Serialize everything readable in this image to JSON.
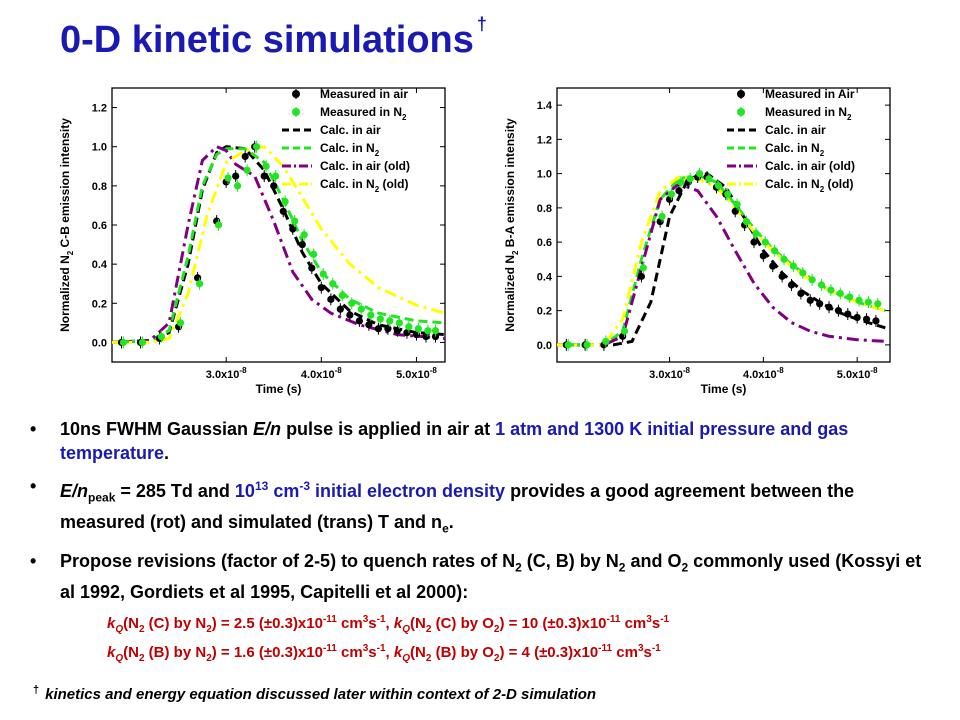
{
  "slide": {
    "title": "0-D kinetic simulations",
    "title_mark": "†",
    "colors": {
      "title": "#1a1ab3",
      "highlight": "#1a1ab3",
      "formula": "#c00000"
    }
  },
  "bullets": {
    "b1": {
      "text_a": "10ns FWHM Gaussian ",
      "text_b": "E/n",
      "text_c": " pulse is applied in air at ",
      "highlight": "1 atm and 1300 K initial pressure and gas temperature",
      "text_d": "."
    },
    "b2": {
      "text_a": "E/n",
      "text_a_sub": "peak",
      "text_b": " = 285 Td and ",
      "highlight_a": "10",
      "highlight_sup": "13",
      "highlight_b": " cm",
      "highlight_sup2": "-3",
      "highlight_c": " initial electron density",
      "text_c": " provides a good agreement between the measured (rot) and simulated (trans) T and n",
      "text_c_sub": "e",
      "text_d": "."
    },
    "b3": {
      "text_a": "Propose revisions (factor of 2-5) to quench rates of N",
      "sub1": "2",
      "text_b": " (C, B) by N",
      "sub2": "2",
      "text_c": " and O",
      "sub3": "2",
      "text_d": " commonly used (Kossyi et al 1992, Gordiets et al 1995, Capitelli et al 2000):"
    }
  },
  "formulas": [
    {
      "k": "k",
      "k_sub": "Q",
      "l1": "(N",
      "l1_sub": "2",
      "l2": " (C) by N",
      "l2_sub": "2",
      "l3": ") = 2.5 (±0.3)x10",
      "l3_sup": "-11",
      "l4": " cm",
      "l4_sup": "3",
      "l5": "s",
      "l5_sup": "-1",
      "l6": ", ",
      "k2": "k",
      "k2_sub": "Q",
      "r1": "(N",
      "r1_sub": "2",
      "r2": " (C) by O",
      "r2_sub": "2",
      "r3": ") = 10 (±0.3)x10",
      "r3_sup": "-11",
      "r4": " cm",
      "r4_sup": "3",
      "r5": "s",
      "r5_sup": "-1"
    },
    {
      "k": "k",
      "k_sub": "Q",
      "l1": "(N",
      "l1_sub": "2",
      "l2": " (B) by N",
      "l2_sub": "2",
      "l3": ") = 1.6 (±0.3)x10",
      "l3_sup": "-11",
      "l4": " cm",
      "l4_sup": "3",
      "l5": "s",
      "l5_sup": "-1",
      "l6": ", ",
      "k2": "k",
      "k2_sub": "Q",
      "r1": "(N",
      "r1_sub": "2",
      "r2": " (B) by O",
      "r2_sub": "2",
      "r3": ") = 4 (±0.3)x10",
      "r3_sup": "-11",
      "r4": " cm",
      "r4_sup": "3",
      "r5": "s",
      "r5_sup": "-1"
    }
  ],
  "footnote": {
    "mark": "†",
    "text": "kinetics and energy equation discussed later within context of 2-D simulation"
  },
  "chart_data": [
    {
      "type": "line",
      "title": "",
      "xlabel": "Time (s)",
      "ylabel": "Normalized N2 C-B emission intensity",
      "ylabel_parts": [
        "Normalized N",
        "2",
        " C-B emission intensity"
      ],
      "xlim": [
        1.8e-08,
        5.3e-08
      ],
      "ylim": [
        -0.1,
        1.3
      ],
      "xticks": [
        3e-08,
        4e-08,
        5e-08
      ],
      "xtick_labels": [
        {
          "mant": "3.0x10",
          "exp": "-8"
        },
        {
          "mant": "4.0x10",
          "exp": "-8"
        },
        {
          "mant": "5.0x10",
          "exp": "-8"
        }
      ],
      "yticks": [
        0.0,
        0.2,
        0.4,
        0.6,
        0.8,
        1.0,
        1.2
      ],
      "ytick_labels": [
        "0.0",
        "0.2",
        "0.4",
        "0.6",
        "0.8",
        "1.0",
        "1.2"
      ],
      "grid": false,
      "legend_position": "top-right",
      "series": [
        {
          "name": "Measured in air",
          "name_parts": [
            "Measured in air"
          ],
          "style": "markers",
          "color": "#000000",
          "x": [
            1.9e-08,
            2.1e-08,
            2.3e-08,
            2.5e-08,
            2.7e-08,
            2.9e-08,
            3e-08,
            3.1e-08,
            3.2e-08,
            3.3e-08,
            3.4e-08,
            3.5e-08,
            3.6e-08,
            3.7e-08,
            3.8e-08,
            3.9e-08,
            4e-08,
            4.1e-08,
            4.2e-08,
            4.3e-08,
            4.4e-08,
            4.5e-08,
            4.6e-08,
            4.7e-08,
            4.8e-08,
            4.9e-08,
            5e-08,
            5.1e-08,
            5.2e-08
          ],
          "y": [
            0.0,
            0.0,
            0.02,
            0.08,
            0.33,
            0.62,
            0.82,
            0.85,
            0.95,
            1.0,
            0.85,
            0.8,
            0.67,
            0.58,
            0.5,
            0.38,
            0.28,
            0.22,
            0.17,
            0.14,
            0.11,
            0.09,
            0.07,
            0.07,
            0.06,
            0.05,
            0.04,
            0.03,
            0.03
          ]
        },
        {
          "name": "Measured in N2",
          "name_parts": [
            "Measured in N",
            "2",
            ""
          ],
          "style": "markers",
          "color": "#22e522",
          "x": [
            1.92e-08,
            2.12e-08,
            2.32e-08,
            2.52e-08,
            2.72e-08,
            2.92e-08,
            3.02e-08,
            3.12e-08,
            3.22e-08,
            3.32e-08,
            3.42e-08,
            3.52e-08,
            3.62e-08,
            3.72e-08,
            3.82e-08,
            3.92e-08,
            4.02e-08,
            4.12e-08,
            4.22e-08,
            4.32e-08,
            4.42e-08,
            4.52e-08,
            4.62e-08,
            4.72e-08,
            4.82e-08,
            4.92e-08,
            5.02e-08,
            5.12e-08,
            5.2e-08
          ],
          "y": [
            0.0,
            0.0,
            0.03,
            0.1,
            0.3,
            0.6,
            0.84,
            0.8,
            0.88,
            1.0,
            0.9,
            0.85,
            0.72,
            0.62,
            0.55,
            0.45,
            0.35,
            0.3,
            0.24,
            0.2,
            0.17,
            0.14,
            0.12,
            0.11,
            0.1,
            0.08,
            0.07,
            0.06,
            0.06
          ]
        },
        {
          "name": "Calc. in air",
          "name_parts": [
            "Calc. in air"
          ],
          "style": "dash",
          "color": "#000000",
          "x": [
            1.8e-08,
            2.2e-08,
            2.4e-08,
            2.6e-08,
            2.75e-08,
            2.9e-08,
            3e-08,
            3.2e-08,
            3.4e-08,
            3.6e-08,
            3.8e-08,
            4e-08,
            4.3e-08,
            4.6e-08,
            5e-08,
            5.3e-08
          ],
          "y": [
            0.0,
            0.01,
            0.05,
            0.4,
            0.78,
            0.97,
            1.0,
            0.99,
            0.88,
            0.68,
            0.46,
            0.3,
            0.16,
            0.09,
            0.05,
            0.04
          ]
        },
        {
          "name": "Calc. in N2",
          "name_parts": [
            "Calc. in N",
            "2",
            ""
          ],
          "style": "dash",
          "color": "#22e522",
          "x": [
            1.8e-08,
            2.2e-08,
            2.4e-08,
            2.6e-08,
            2.75e-08,
            2.9e-08,
            3e-08,
            3.2e-08,
            3.4e-08,
            3.6e-08,
            3.8e-08,
            4e-08,
            4.3e-08,
            4.6e-08,
            5e-08,
            5.3e-08
          ],
          "y": [
            0.0,
            0.01,
            0.06,
            0.44,
            0.8,
            0.96,
            0.99,
            0.99,
            0.92,
            0.73,
            0.52,
            0.36,
            0.22,
            0.15,
            0.11,
            0.1
          ]
        },
        {
          "name": "Calc. in air (old)",
          "name_parts": [
            "Calc. in air (old)"
          ],
          "style": "dashdot",
          "color": "#800080",
          "x": [
            1.8e-08,
            2.2e-08,
            2.4e-08,
            2.6e-08,
            2.75e-08,
            2.9e-08,
            3e-08,
            3.1e-08,
            3.3e-08,
            3.5e-08,
            3.7e-08,
            3.9e-08,
            4.1e-08,
            4.4e-08,
            4.8e-08,
            5.3e-08
          ],
          "y": [
            0.0,
            0.01,
            0.1,
            0.6,
            0.93,
            1.0,
            0.98,
            0.91,
            0.85,
            0.62,
            0.36,
            0.22,
            0.15,
            0.09,
            0.04,
            0.02
          ]
        },
        {
          "name": "Calc. in N2 (old)",
          "name_parts": [
            "Calc. in N",
            "2",
            " (old)"
          ],
          "style": "dashdot",
          "color": "#ffff00",
          "x": [
            1.8e-08,
            2.2e-08,
            2.4e-08,
            2.6e-08,
            2.8e-08,
            3e-08,
            3.2e-08,
            3.4e-08,
            3.6e-08,
            3.8e-08,
            4e-08,
            4.3e-08,
            4.6e-08,
            5e-08,
            5.3e-08
          ],
          "y": [
            0.0,
            0.0,
            0.02,
            0.25,
            0.65,
            0.92,
            0.98,
            1.0,
            0.9,
            0.74,
            0.58,
            0.4,
            0.28,
            0.19,
            0.15
          ]
        }
      ]
    },
    {
      "type": "line",
      "title": "",
      "xlabel": "Time (s)",
      "ylabel": "Normalized N2 B-A emission intensity",
      "ylabel_parts": [
        "Normalized N",
        "2",
        " B-A emission intensity"
      ],
      "xlim": [
        1.8e-08,
        5.35e-08
      ],
      "ylim": [
        -0.1,
        1.5
      ],
      "xticks": [
        3e-08,
        4e-08,
        5e-08
      ],
      "xtick_labels": [
        {
          "mant": "3.0x10",
          "exp": "-8"
        },
        {
          "mant": "4.0x10",
          "exp": "-8"
        },
        {
          "mant": "5.0x10",
          "exp": "-8"
        }
      ],
      "yticks": [
        0.0,
        0.2,
        0.4,
        0.6,
        0.8,
        1.0,
        1.2,
        1.4
      ],
      "ytick_labels": [
        "0.0",
        "0.2",
        "0.4",
        "0.6",
        "0.8",
        "1.0",
        "1.2",
        "1.4"
      ],
      "grid": false,
      "legend_position": "top-right",
      "series": [
        {
          "name": "Measured in Air",
          "name_parts": [
            "Measured in Air"
          ],
          "style": "markers",
          "color": "#000000",
          "x": [
            1.9e-08,
            2.1e-08,
            2.3e-08,
            2.5e-08,
            2.7e-08,
            2.9e-08,
            3e-08,
            3.1e-08,
            3.2e-08,
            3.3e-08,
            3.4e-08,
            3.5e-08,
            3.6e-08,
            3.7e-08,
            3.8e-08,
            3.9e-08,
            4e-08,
            4.1e-08,
            4.2e-08,
            4.3e-08,
            4.4e-08,
            4.5e-08,
            4.6e-08,
            4.7e-08,
            4.8e-08,
            4.9e-08,
            5e-08,
            5.1e-08,
            5.2e-08
          ],
          "y": [
            0.0,
            0.0,
            0.0,
            0.05,
            0.4,
            0.72,
            0.85,
            0.9,
            0.95,
            0.98,
            0.98,
            0.92,
            0.88,
            0.78,
            0.7,
            0.6,
            0.52,
            0.46,
            0.4,
            0.35,
            0.3,
            0.26,
            0.24,
            0.22,
            0.2,
            0.18,
            0.16,
            0.15,
            0.14
          ]
        },
        {
          "name": "Measured in N2",
          "name_parts": [
            "Measured in N",
            "2",
            ""
          ],
          "style": "markers",
          "color": "#22e522",
          "x": [
            1.92e-08,
            2.12e-08,
            2.32e-08,
            2.52e-08,
            2.72e-08,
            2.92e-08,
            3.02e-08,
            3.12e-08,
            3.22e-08,
            3.32e-08,
            3.42e-08,
            3.52e-08,
            3.62e-08,
            3.72e-08,
            3.82e-08,
            3.92e-08,
            4.02e-08,
            4.12e-08,
            4.22e-08,
            4.32e-08,
            4.42e-08,
            4.52e-08,
            4.62e-08,
            4.72e-08,
            4.82e-08,
            4.92e-08,
            5.02e-08,
            5.12e-08,
            5.22e-08
          ],
          "y": [
            0.0,
            0.0,
            0.02,
            0.08,
            0.45,
            0.75,
            0.88,
            0.95,
            0.97,
            1.0,
            0.97,
            0.93,
            0.88,
            0.82,
            0.72,
            0.65,
            0.6,
            0.55,
            0.5,
            0.46,
            0.42,
            0.38,
            0.35,
            0.32,
            0.3,
            0.28,
            0.26,
            0.25,
            0.24
          ]
        },
        {
          "name": "Calc. in air",
          "name_parts": [
            "Calc. in air"
          ],
          "style": "dash",
          "color": "#000000",
          "x": [
            1.8e-08,
            2.4e-08,
            2.6e-08,
            2.8e-08,
            3e-08,
            3.2e-08,
            3.4e-08,
            3.6e-08,
            3.8e-08,
            4e-08,
            4.2e-08,
            4.4e-08,
            4.6e-08,
            4.8e-08,
            5e-08,
            5.3e-08
          ],
          "y": [
            0.0,
            0.0,
            0.02,
            0.25,
            0.75,
            0.97,
            1.0,
            0.92,
            0.74,
            0.55,
            0.42,
            0.32,
            0.25,
            0.19,
            0.15,
            0.1
          ]
        },
        {
          "name": "Calc. in N2",
          "name_parts": [
            "Calc. in N",
            "2",
            ""
          ],
          "style": "dash",
          "color": "#22e522",
          "x": [
            1.8e-08,
            2.3e-08,
            2.5e-08,
            2.7e-08,
            2.9e-08,
            3.1e-08,
            3.3e-08,
            3.5e-08,
            3.7e-08,
            3.9e-08,
            4.1e-08,
            4.3e-08,
            4.5e-08,
            4.7e-08,
            5e-08,
            5.3e-08
          ],
          "y": [
            0.0,
            0.0,
            0.08,
            0.5,
            0.85,
            0.97,
            0.99,
            0.95,
            0.82,
            0.68,
            0.56,
            0.47,
            0.39,
            0.32,
            0.25,
            0.2
          ]
        },
        {
          "name": "Calc. in air (old)",
          "name_parts": [
            "Calc. in air (old)"
          ],
          "style": "dashdot",
          "color": "#800080",
          "x": [
            1.8e-08,
            2.3e-08,
            2.5e-08,
            2.7e-08,
            2.9e-08,
            3.1e-08,
            3.3e-08,
            3.5e-08,
            3.7e-08,
            3.9e-08,
            4.1e-08,
            4.3e-08,
            4.5e-08,
            4.7e-08,
            5e-08,
            5.3e-08
          ],
          "y": [
            0.0,
            0.0,
            0.05,
            0.45,
            0.85,
            0.94,
            0.9,
            0.75,
            0.55,
            0.36,
            0.22,
            0.13,
            0.08,
            0.05,
            0.03,
            0.02
          ]
        },
        {
          "name": "Calc. in N2 (old)",
          "name_parts": [
            "Calc. in N",
            "2",
            " (old)"
          ],
          "style": "dashdot",
          "color": "#ffff00",
          "x": [
            1.8e-08,
            2.3e-08,
            2.5e-08,
            2.7e-08,
            2.9e-08,
            3.1e-08,
            3.3e-08,
            3.5e-08,
            3.7e-08,
            3.9e-08,
            4.1e-08,
            4.3e-08,
            4.5e-08,
            4.7e-08,
            5e-08,
            5.3e-08
          ],
          "y": [
            0.0,
            0.0,
            0.15,
            0.6,
            0.9,
            0.98,
            0.97,
            0.92,
            0.8,
            0.66,
            0.55,
            0.46,
            0.38,
            0.32,
            0.25,
            0.2
          ]
        }
      ]
    }
  ]
}
